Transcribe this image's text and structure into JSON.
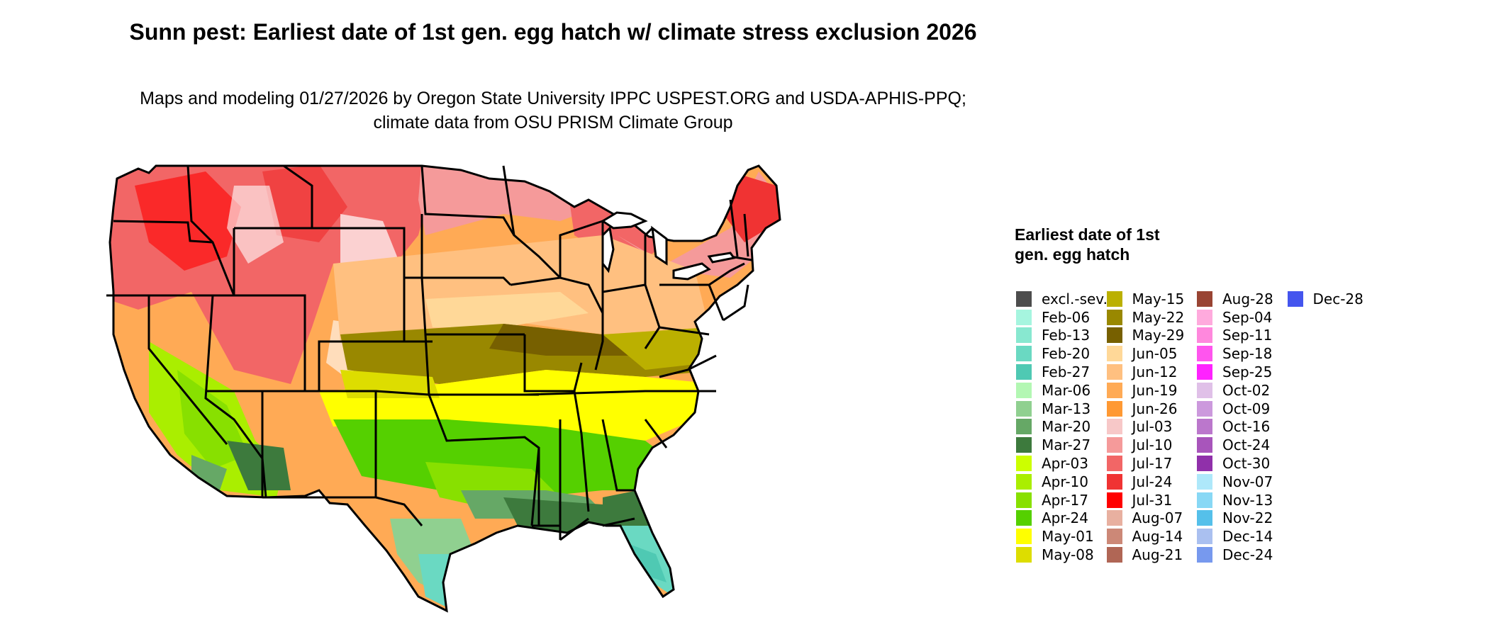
{
  "title": "Sunn pest: Earliest date of 1st gen. egg hatch w/ climate stress exclusion 2026",
  "subtitle": "Maps and modeling 01/27/2026 by Oregon State University IPPC USPEST.ORG and USDA-APHIS-PPQ; climate data from OSU PRISM Climate Group",
  "legend": {
    "title": "Earliest date of 1st gen. egg hatch",
    "items": [
      {
        "label": "excl.-sev.",
        "color": "#4d4d4d"
      },
      {
        "label": "Feb-06",
        "color": "#a6f5df"
      },
      {
        "label": "Feb-13",
        "color": "#88e8d0"
      },
      {
        "label": "Feb-20",
        "color": "#6ad9c2"
      },
      {
        "label": "Feb-27",
        "color": "#4fc9b3"
      },
      {
        "label": "Mar-06",
        "color": "#b3f7b3"
      },
      {
        "label": "Mar-13",
        "color": "#90d090"
      },
      {
        "label": "Mar-20",
        "color": "#66a866"
      },
      {
        "label": "Mar-27",
        "color": "#3d7a3d"
      },
      {
        "label": "Apr-03",
        "color": "#ccff00"
      },
      {
        "label": "Apr-10",
        "color": "#aaee00"
      },
      {
        "label": "Apr-17",
        "color": "#88e000"
      },
      {
        "label": "Apr-24",
        "color": "#55d000"
      },
      {
        "label": "May-01",
        "color": "#ffff00"
      },
      {
        "label": "May-08",
        "color": "#dddd00"
      },
      {
        "label": "May-15",
        "color": "#bbb000"
      },
      {
        "label": "May-22",
        "color": "#998800"
      },
      {
        "label": "May-29",
        "color": "#776000"
      },
      {
        "label": "Jun-05",
        "color": "#ffd898"
      },
      {
        "label": "Jun-12",
        "color": "#ffc080"
      },
      {
        "label": "Jun-19",
        "color": "#ffaa55"
      },
      {
        "label": "Jun-26",
        "color": "#ff9933"
      },
      {
        "label": "Jul-03",
        "color": "#f7c8c8"
      },
      {
        "label": "Jul-10",
        "color": "#f59a9a"
      },
      {
        "label": "Jul-17",
        "color": "#f26666"
      },
      {
        "label": "Jul-24",
        "color": "#f03333"
      },
      {
        "label": "Jul-31",
        "color": "#ff0000"
      },
      {
        "label": "Aug-07",
        "color": "#e8b0a0"
      },
      {
        "label": "Aug-14",
        "color": "#cc8877"
      },
      {
        "label": "Aug-21",
        "color": "#b06655"
      },
      {
        "label": "Aug-28",
        "color": "#994433"
      },
      {
        "label": "Sep-04",
        "color": "#ffaadd"
      },
      {
        "label": "Sep-11",
        "color": "#ff88dd"
      },
      {
        "label": "Sep-18",
        "color": "#ff55ee"
      },
      {
        "label": "Sep-25",
        "color": "#ff22ff"
      },
      {
        "label": "Oct-02",
        "color": "#e0c0e8"
      },
      {
        "label": "Oct-09",
        "color": "#cc99dd"
      },
      {
        "label": "Oct-16",
        "color": "#bb77cc"
      },
      {
        "label": "Oct-24",
        "color": "#a855bb"
      },
      {
        "label": "Oct-30",
        "color": "#9030aa"
      },
      {
        "label": "Nov-07",
        "color": "#aee8fa"
      },
      {
        "label": "Nov-13",
        "color": "#88d8f5"
      },
      {
        "label": "Nov-22",
        "color": "#55c0ea"
      },
      {
        "label": "Dec-14",
        "color": "#aac0f0"
      },
      {
        "label": "Dec-24",
        "color": "#7799ee"
      },
      {
        "label": "Dec-28",
        "color": "#4455ee"
      }
    ]
  }
}
